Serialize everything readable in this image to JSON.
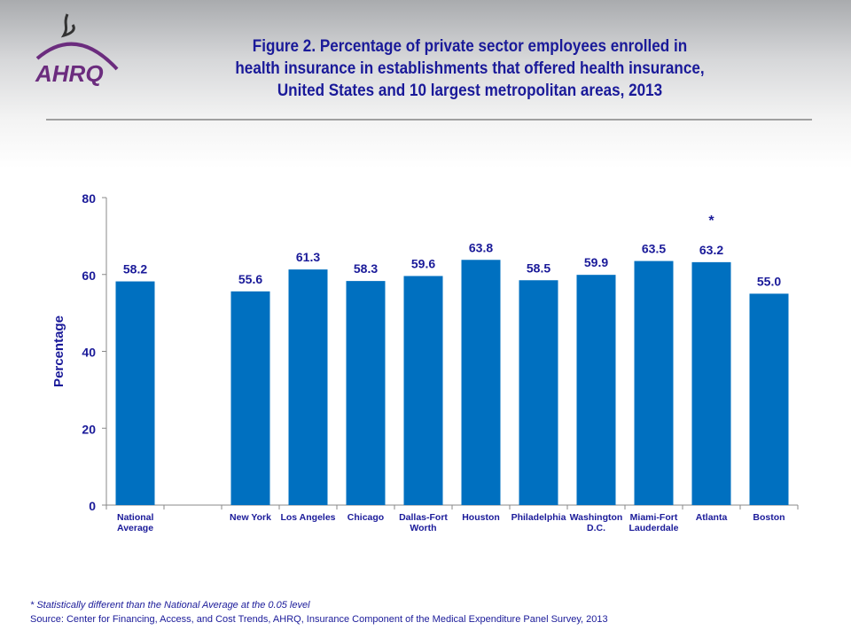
{
  "logo": {
    "text": "AHRQ"
  },
  "chart_data": {
    "type": "bar",
    "title": "Figure 2. Percentage of private sector employees enrolled in health insurance in establishments that offered health insurance, United States and 10 largest metropolitan areas, 2013",
    "title_lines": [
      "Figure 2. Percentage of private sector employees enrolled in",
      "health insurance in establishments that offered health insurance,",
      "United States and 10 largest metropolitan areas, 2013"
    ],
    "ylabel": "Percentage",
    "xlabel": "",
    "ylim": [
      0,
      80
    ],
    "yticks": [
      0,
      20,
      40,
      60,
      80
    ],
    "grid": false,
    "categories": [
      [
        "National",
        "Average"
      ],
      [],
      [
        "New York"
      ],
      [
        "Los Angeles"
      ],
      [
        "Chicago"
      ],
      [
        "Dallas-Fort",
        "Worth"
      ],
      [
        "Houston"
      ],
      [
        "Philadelphia"
      ],
      [
        "Washington",
        "D.C."
      ],
      [
        "Miami-Fort",
        "Lauderdale"
      ],
      [
        "Atlanta"
      ],
      [
        "Boston"
      ]
    ],
    "values": [
      58.2,
      null,
      55.6,
      61.3,
      58.3,
      59.6,
      63.8,
      58.5,
      59.9,
      63.5,
      63.2,
      55.0
    ],
    "labels": [
      "58.2",
      "",
      "55.6",
      "61.3",
      "58.3",
      "59.6",
      "63.8",
      "58.5",
      "59.9",
      "63.5",
      "63.2",
      "55.0"
    ],
    "annotations": [
      "",
      "",
      "",
      "",
      "",
      "",
      "",
      "",
      "",
      "",
      "*",
      ""
    ],
    "bar_color": "#0070C0",
    "text_color": "#1a1a99"
  },
  "footnote": "* Statistically different than the National Average at the 0.05 level",
  "source": "Source: Center for Financing, Access, and Cost Trends, AHRQ, Insurance Component of the Medical Expenditure Panel Survey,  2013"
}
